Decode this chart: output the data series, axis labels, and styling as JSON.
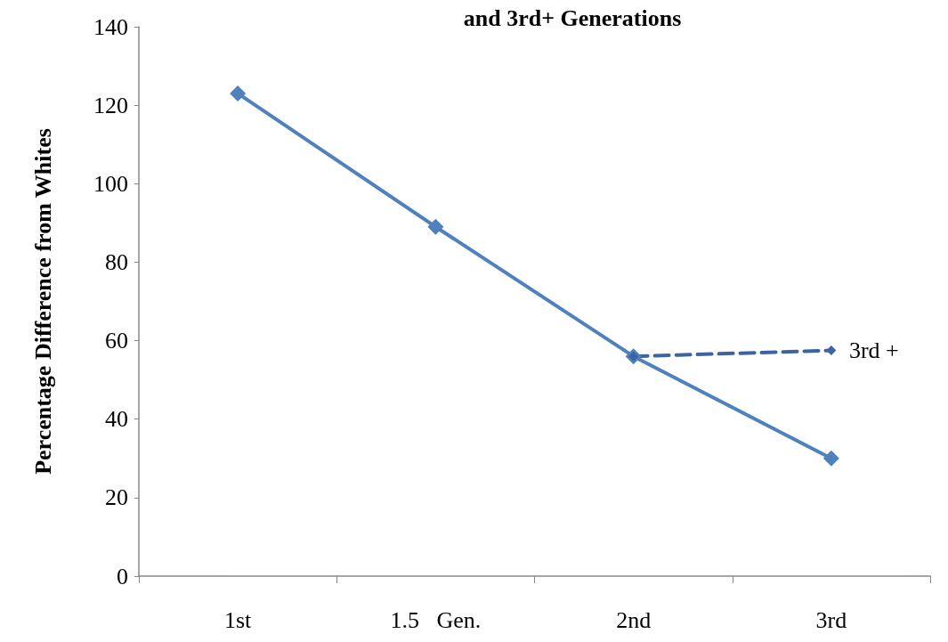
{
  "chart_data": {
    "type": "line",
    "title": "and 3rd+ Generations",
    "ylabel": "Percentage Difference from Whites",
    "categories": [
      "1st",
      "1.5   Gen.",
      "2nd",
      "3rd"
    ],
    "series": [
      {
        "color": "#4f81bd",
        "values": [
          123,
          89,
          56,
          30
        ],
        "marker": "diamond",
        "line_style": "solid"
      },
      {
        "name": "3rd +",
        "color": "#3c64a0",
        "values": [
          null,
          null,
          56,
          57.5
        ],
        "marker": "diamond",
        "line_style": "dashed"
      }
    ],
    "ylim": [
      0,
      140
    ],
    "yticks": [
      0,
      20,
      40,
      60,
      80,
      100,
      120,
      140
    ]
  }
}
